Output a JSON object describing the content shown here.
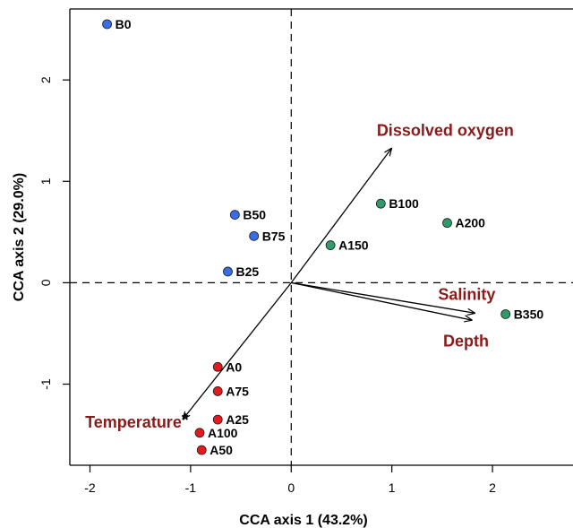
{
  "chart_data": {
    "type": "scatter",
    "title": "",
    "xlabel": "CCA axis 1 (43.2%)",
    "ylabel": "CCA axis 2 (29.0%)",
    "xlim": [
      -2.2,
      2.8
    ],
    "ylim": [
      -1.8,
      2.7
    ],
    "x_ticks": [
      -2,
      -1,
      0,
      1,
      2
    ],
    "y_ticks": [
      -1,
      0,
      1,
      2
    ],
    "x_tick_labels": [
      "-2",
      "-1",
      "0",
      "1",
      "2"
    ],
    "y_tick_labels": [
      "-1",
      "0",
      "1",
      "2"
    ],
    "reference_lines": {
      "x": 0,
      "y": 0,
      "style": "dashed"
    },
    "grid": false,
    "legend": "none",
    "groups": [
      {
        "color": "#3b6ce8",
        "points": [
          {
            "label": "B0",
            "x": -1.83,
            "y": 2.55
          },
          {
            "label": "B50",
            "x": -0.56,
            "y": 0.67
          },
          {
            "label": "B75",
            "x": -0.37,
            "y": 0.46
          },
          {
            "label": "B25",
            "x": -0.63,
            "y": 0.11
          }
        ]
      },
      {
        "color": "#2e9b6a",
        "points": [
          {
            "label": "B100",
            "x": 0.89,
            "y": 0.78
          },
          {
            "label": "A200",
            "x": 1.55,
            "y": 0.59
          },
          {
            "label": "A150",
            "x": 0.39,
            "y": 0.37
          },
          {
            "label": "B350",
            "x": 2.13,
            "y": -0.31
          }
        ]
      },
      {
        "color": "#e8191e",
        "points": [
          {
            "label": "A0",
            "x": -0.73,
            "y": -0.83
          },
          {
            "label": "A75",
            "x": -0.73,
            "y": -1.07
          },
          {
            "label": "A25",
            "x": -0.73,
            "y": -1.35
          },
          {
            "label": "A100",
            "x": -0.91,
            "y": -1.48
          },
          {
            "label": "A50",
            "x": -0.89,
            "y": -1.65
          }
        ]
      }
    ],
    "vectors": [
      {
        "label": "Dissolved oxygen",
        "x": 1.0,
        "y": 1.33,
        "label_x": 0.85,
        "label_y": 1.45,
        "anchor": "start"
      },
      {
        "label": "Salinity",
        "x": 1.83,
        "y": -0.3,
        "label_x": 1.46,
        "label_y": -0.17,
        "anchor": "start"
      },
      {
        "label": "Depth",
        "x": 1.8,
        "y": -0.37,
        "label_x": 1.51,
        "label_y": -0.63,
        "anchor": "start"
      },
      {
        "label": "Temperature",
        "x": -1.08,
        "y": -1.35,
        "label_x": -1.02,
        "label_y": -1.43,
        "anchor": "end",
        "suffix": "*"
      }
    ],
    "vector_label_color": "#8b1a1a"
  }
}
